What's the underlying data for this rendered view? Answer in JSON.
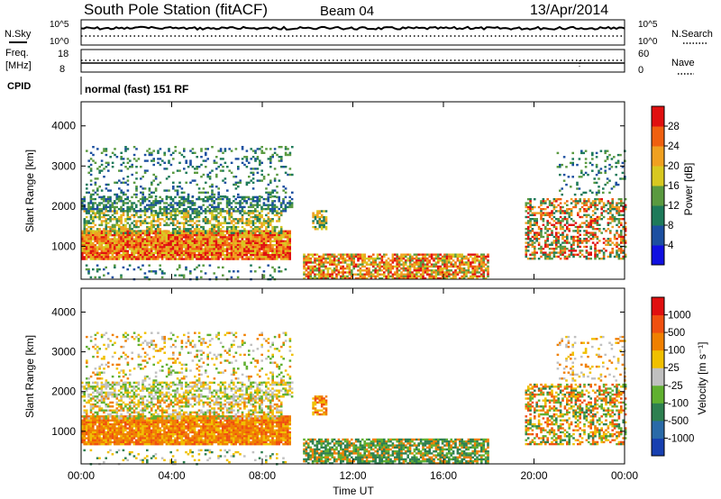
{
  "header": {
    "station": "South Pole Station (fitACF)",
    "beam": "Beam 04",
    "date": "13/Apr/2014"
  },
  "summary_panels": {
    "nsky_label": "N.Sky",
    "nsearch_label": "N.Search",
    "freq_label": "Freq.",
    "freq_unit": "[MHz]",
    "nave_label": "Nave",
    "cpid_label": "CPID",
    "cpid_value": "normal (fast) 151 RF",
    "noise_ticks_left": [
      "10^5",
      "10^0"
    ],
    "noise_ticks_right": [
      "10^5",
      "10^0"
    ],
    "freq_ticks": [
      "18",
      "8"
    ],
    "nave_ticks": [
      "60",
      "0"
    ]
  },
  "colors": {
    "power_scale": [
      "#1010e0",
      "#1c4fa0",
      "#1e7a5a",
      "#5a9a40",
      "#d8c820",
      "#f0a020",
      "#f06010",
      "#e01010"
    ],
    "velocity_scale": [
      "#1840b0",
      "#2a6aa8",
      "#2e8050",
      "#60b030",
      "#c0c0c0",
      "#f0c000",
      "#f08000",
      "#f05010",
      "#e01010"
    ]
  },
  "chart_data": [
    {
      "type": "heatmap",
      "name": "power",
      "ylabel": "Slant Range [km]",
      "xlabel": "",
      "x_ticks": [
        "00:00",
        "04:00",
        "08:00",
        "12:00",
        "16:00",
        "20:00",
        "00:00"
      ],
      "y_ticks": [
        1000,
        2000,
        3000,
        4000
      ],
      "ylim": [
        180,
        4600
      ],
      "xlim_hours": [
        0,
        24
      ],
      "colorbar_label": "Power [dB]",
      "colorbar_ticks": [
        "28",
        "24",
        "20",
        "16",
        "12",
        "8",
        "4"
      ],
      "colorbar_range": [
        0,
        32
      ]
    },
    {
      "type": "heatmap",
      "name": "velocity",
      "ylabel": "Slant Range [km]",
      "xlabel": "Time UT",
      "x_ticks": [
        "00:00",
        "04:00",
        "08:00",
        "12:00",
        "16:00",
        "20:00",
        "00:00"
      ],
      "y_ticks": [
        1000,
        2000,
        3000,
        4000
      ],
      "ylim": [
        180,
        4600
      ],
      "xlim_hours": [
        0,
        24
      ],
      "colorbar_label": "Velocity [m s⁻¹]",
      "colorbar_ticks": [
        "1000",
        "500",
        "100",
        "25",
        "-25",
        "-100",
        "-500",
        "-1000"
      ]
    }
  ]
}
